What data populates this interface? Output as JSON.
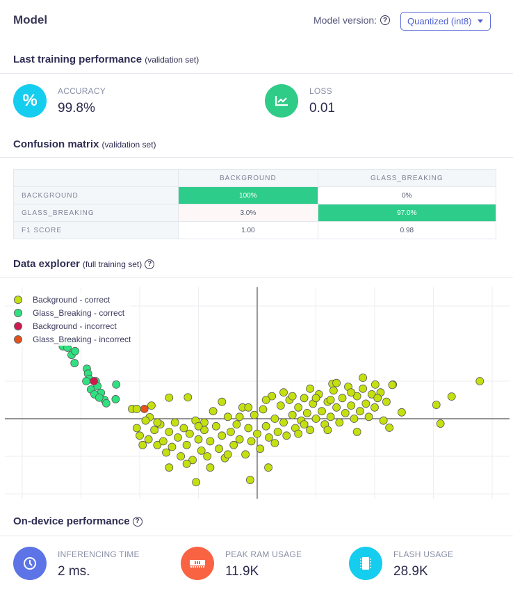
{
  "header": {
    "title": "Model",
    "model_version_label": "Model version:",
    "model_version_value": "Quantized (int8)",
    "help": "?"
  },
  "training": {
    "title": "Last training performance",
    "subtitle": "(validation set)",
    "metrics": [
      {
        "label": "ACCURACY",
        "value": "99.8%",
        "icon": "percent-icon",
        "color": "#15cdef"
      },
      {
        "label": "LOSS",
        "value": "0.01",
        "icon": "chart-icon",
        "color": "#2ecc87"
      }
    ]
  },
  "confusion": {
    "title": "Confusion matrix",
    "subtitle": "(validation set)",
    "columns": [
      "BACKGROUND",
      "GLASS_BREAKING"
    ],
    "rows": [
      {
        "label": "BACKGROUND",
        "values": [
          "100%",
          "0%"
        ]
      },
      {
        "label": "GLASS_BREAKING",
        "values": [
          "3.0%",
          "97.0%"
        ]
      },
      {
        "label": "F1 SCORE",
        "values": [
          "1.00",
          "0.98"
        ]
      }
    ]
  },
  "explorer": {
    "title": "Data explorer",
    "subtitle": "(full training set)"
  },
  "chart_data": {
    "type": "scatter",
    "title": "",
    "xlabel": "",
    "ylabel": "",
    "xlim": [
      -4.3,
      4.3
    ],
    "ylim": [
      -2.1,
      3.5
    ],
    "grid": true,
    "x_grid": [
      -4,
      -3,
      -2,
      -1,
      1,
      2,
      3,
      4
    ],
    "y_grid": [
      3,
      1,
      -1,
      -2
    ],
    "legend_placement": "top-left",
    "series": [
      {
        "name": "Background - correct",
        "color": "#c5e00f",
        "points": [
          [
            3.79,
            1.0
          ],
          [
            3.31,
            0.59
          ],
          [
            3.05,
            0.37
          ],
          [
            3.12,
            -0.13
          ],
          [
            2.46,
            0.17
          ],
          [
            2.25,
            -0.24
          ],
          [
            -1.04,
            -1.69
          ],
          [
            -0.12,
            -1.63
          ],
          [
            0.19,
            -1.3
          ],
          [
            -1.5,
            0.56
          ],
          [
            -1.18,
            0.57
          ],
          [
            -2.13,
            0.26
          ],
          [
            -2.05,
            0.26
          ],
          [
            -1.8,
            0.35
          ],
          [
            -1.83,
            0.04
          ],
          [
            1.8,
            1.09
          ],
          [
            2.01,
            0.91
          ],
          [
            2.31,
            0.91
          ],
          [
            1.28,
            0.93
          ],
          [
            -2.05,
            -0.25
          ],
          [
            -2.0,
            -0.45
          ],
          [
            -1.9,
            -0.05
          ],
          [
            -1.85,
            -0.55
          ],
          [
            -1.75,
            -0.3
          ],
          [
            -1.7,
            -0.7
          ],
          [
            -1.65,
            -0.15
          ],
          [
            -1.6,
            -0.6
          ],
          [
            -1.55,
            -0.9
          ],
          [
            -1.5,
            -0.35
          ],
          [
            -1.45,
            -0.75
          ],
          [
            -1.4,
            -0.1
          ],
          [
            -1.35,
            -0.5
          ],
          [
            -1.3,
            -1.0
          ],
          [
            -1.25,
            -0.25
          ],
          [
            -1.2,
            -0.7
          ],
          [
            -1.15,
            -0.4
          ],
          [
            -1.1,
            -1.1
          ],
          [
            -1.05,
            -0.05
          ],
          [
            -1.0,
            -0.55
          ],
          [
            -0.95,
            -0.85
          ],
          [
            -0.9,
            -0.3
          ],
          [
            -0.85,
            -1.0
          ],
          [
            -0.8,
            -0.6
          ],
          [
            -0.75,
            0.2
          ],
          [
            -0.7,
            -0.2
          ],
          [
            -0.65,
            -0.8
          ],
          [
            -0.6,
            -0.45
          ],
          [
            -0.55,
            -1.05
          ],
          [
            -0.5,
            0.05
          ],
          [
            -0.45,
            -0.35
          ],
          [
            -0.4,
            -0.7
          ],
          [
            -0.35,
            -0.15
          ],
          [
            -0.3,
            -0.55
          ],
          [
            -0.25,
            0.3
          ],
          [
            -0.2,
            -0.95
          ],
          [
            -0.15,
            -0.25
          ],
          [
            -0.1,
            -0.6
          ],
          [
            -0.05,
            0.1
          ],
          [
            0.0,
            -0.4
          ],
          [
            0.05,
            -0.8
          ],
          [
            0.1,
            0.25
          ],
          [
            0.15,
            -0.2
          ],
          [
            0.2,
            -0.5
          ],
          [
            0.25,
            0.6
          ],
          [
            0.3,
            0.0
          ],
          [
            0.35,
            -0.35
          ],
          [
            0.4,
            0.35
          ],
          [
            0.45,
            -0.1
          ],
          [
            0.5,
            -0.45
          ],
          [
            0.55,
            0.5
          ],
          [
            0.6,
            0.1
          ],
          [
            0.65,
            -0.25
          ],
          [
            0.7,
            0.3
          ],
          [
            0.75,
            -0.05
          ],
          [
            0.8,
            0.55
          ],
          [
            0.85,
            0.15
          ],
          [
            0.9,
            -0.3
          ],
          [
            0.95,
            0.4
          ],
          [
            1.0,
            0.0
          ],
          [
            1.05,
            0.65
          ],
          [
            1.1,
            0.2
          ],
          [
            1.15,
            -0.15
          ],
          [
            1.2,
            0.45
          ],
          [
            1.25,
            0.05
          ],
          [
            1.3,
            0.75
          ],
          [
            1.35,
            0.3
          ],
          [
            1.4,
            -0.1
          ],
          [
            1.45,
            0.55
          ],
          [
            1.5,
            0.15
          ],
          [
            1.55,
            0.85
          ],
          [
            1.6,
            0.35
          ],
          [
            1.65,
            0.0
          ],
          [
            1.7,
            0.6
          ],
          [
            1.75,
            0.2
          ],
          [
            1.8,
            0.8
          ],
          [
            1.85,
            0.4
          ],
          [
            1.9,
            0.05
          ],
          [
            1.95,
            0.65
          ],
          [
            2.0,
            0.3
          ],
          [
            2.1,
            0.7
          ],
          [
            2.15,
            -0.05
          ],
          [
            2.2,
            0.45
          ],
          [
            2.3,
            0.9
          ],
          [
            1.7,
            -0.35
          ],
          [
            -0.9,
            -0.1
          ],
          [
            -0.6,
            0.45
          ],
          [
            -0.3,
            0.05
          ],
          [
            0.15,
            0.5
          ],
          [
            0.6,
            0.6
          ],
          [
            0.9,
            0.8
          ],
          [
            1.2,
            -0.3
          ],
          [
            -1.7,
            -0.1
          ],
          [
            -1.95,
            -0.7
          ],
          [
            -1.5,
            -1.3
          ],
          [
            -1.2,
            -1.2
          ],
          [
            -0.8,
            -1.3
          ],
          [
            -0.5,
            -0.95
          ],
          [
            0.3,
            -0.65
          ],
          [
            0.7,
            -0.4
          ],
          [
            1.0,
            0.55
          ],
          [
            1.35,
            0.95
          ],
          [
            0.45,
            0.7
          ],
          [
            -0.15,
            0.3
          ],
          [
            -1.0,
            -0.2
          ],
          [
            0.8,
            -0.15
          ],
          [
            1.6,
            0.7
          ],
          [
            2.05,
            0.55
          ],
          [
            1.25,
            0.5
          ]
        ]
      },
      {
        "name": "Glass_Breaking - correct",
        "color": "#2ee27f",
        "points": [
          [
            -3.31,
            1.93
          ],
          [
            -3.23,
            1.89
          ],
          [
            -3.16,
            1.7
          ],
          [
            -3.11,
            1.48
          ],
          [
            -2.9,
            1.33
          ],
          [
            -2.88,
            1.2
          ],
          [
            -2.86,
            1.06
          ],
          [
            -2.75,
            1.0
          ],
          [
            -2.72,
            0.87
          ],
          [
            -2.66,
            0.69
          ],
          [
            -2.6,
            0.5
          ],
          [
            -2.57,
            0.41
          ],
          [
            -2.4,
            0.91
          ],
          [
            -2.41,
            0.52
          ],
          [
            -2.91,
            1.0
          ],
          [
            -2.83,
            0.78
          ],
          [
            -2.77,
            0.65
          ],
          [
            -2.69,
            0.56
          ],
          [
            -3.1,
            1.8
          ],
          [
            -3.2,
            2.04
          ]
        ]
      },
      {
        "name": "Background - incorrect",
        "color": "#d11a50",
        "points": [
          [
            -2.78,
            1.0
          ]
        ]
      },
      {
        "name": "Glass_Breaking - incorrect",
        "color": "#e8501a",
        "points": [
          [
            -1.92,
            0.26
          ]
        ]
      }
    ]
  },
  "on_device": {
    "title": "On-device performance",
    "metrics": [
      {
        "label": "INFERENCING TIME",
        "value": "2 ms.",
        "icon": "clock-icon",
        "color": "#5c74e6"
      },
      {
        "label": "PEAK RAM USAGE",
        "value": "11.9K",
        "icon": "ram-icon",
        "color": "#fa6342"
      },
      {
        "label": "FLASH USAGE",
        "value": "28.9K",
        "icon": "chip-icon",
        "color": "#15cdef"
      }
    ]
  }
}
